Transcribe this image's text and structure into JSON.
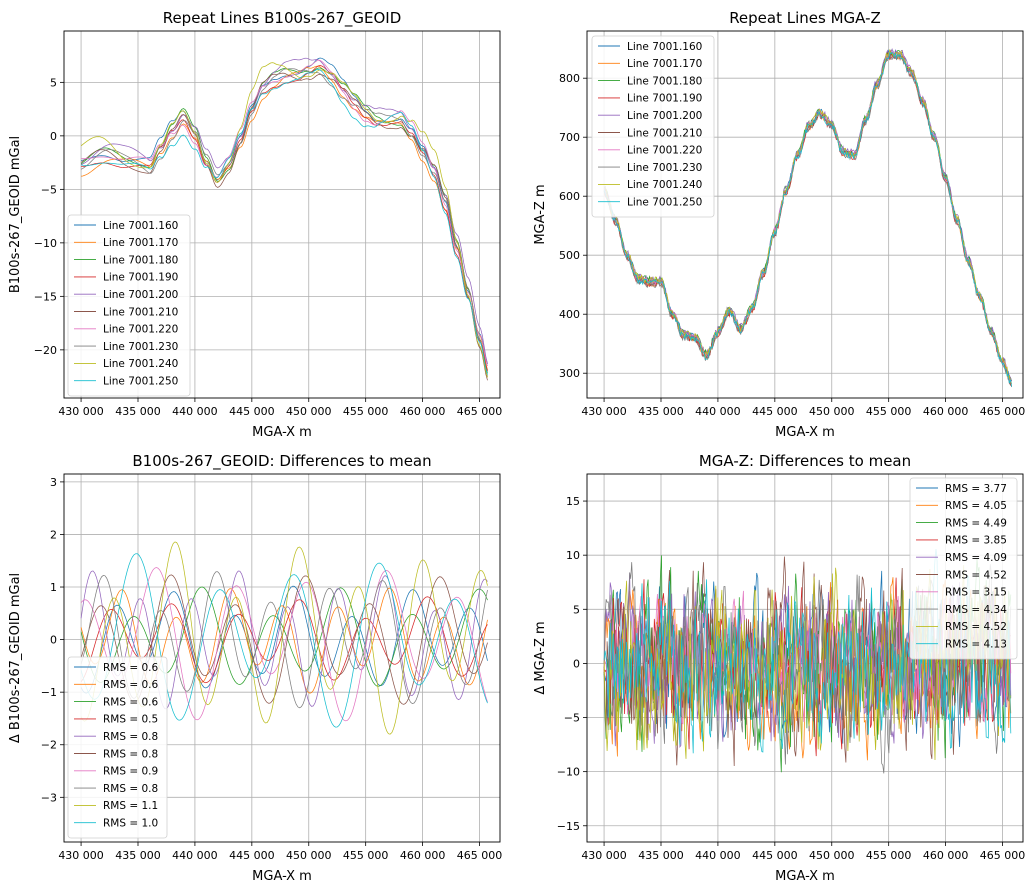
{
  "figure": {
    "background": "#ffffff",
    "grid_color": "#b0b0b0"
  },
  "colors": [
    "#1f77b4",
    "#ff7f0e",
    "#2ca02c",
    "#d62728",
    "#9467bd",
    "#8c564b",
    "#e377c2",
    "#7f7f7f",
    "#bcbd22",
    "#17becf"
  ],
  "chart_data": [
    {
      "type": "line",
      "title": "Repeat Lines B100s-267_GEOID",
      "xlabel": "MGA-X m",
      "ylabel": "B100s-267_GEOID mGal",
      "xlim": [
        428500,
        466800
      ],
      "ylim": [
        -24.5,
        9.8
      ],
      "xticks": [
        430000,
        435000,
        440000,
        445000,
        450000,
        455000,
        460000,
        465000
      ],
      "xtick_labels": [
        "430 000",
        "435 000",
        "440 000",
        "445 000",
        "450 000",
        "455 000",
        "460 000",
        "465 000"
      ],
      "yticks": [
        -20,
        -15,
        -10,
        -5,
        0,
        5
      ],
      "ytick_labels": [
        "−20",
        "−15",
        "−10",
        "−5",
        "0",
        "5"
      ],
      "grid": true,
      "legend_position": "lower-left",
      "x_start": 430000,
      "x_end": 465800,
      "base_profile": {
        "x": [
          430000,
          432000,
          434000,
          436000,
          437000,
          438000,
          439000,
          440000,
          441000,
          442000,
          443000,
          444000,
          445000,
          446000,
          447000,
          448000,
          449000,
          450000,
          451000,
          452000,
          453000,
          454000,
          455000,
          456000,
          457000,
          458000,
          459000,
          460000,
          461000,
          462000,
          463000,
          464000,
          465000,
          465800
        ],
        "y": [
          -3,
          -2.5,
          -3,
          -3,
          -1,
          1,
          2.5,
          1,
          -1.5,
          -3.5,
          -2.5,
          -0.5,
          2,
          3.8,
          4.5,
          5,
          5.2,
          5.8,
          6.5,
          6,
          5,
          4,
          3,
          2.2,
          1.8,
          1.5,
          0,
          -2,
          -4,
          -7,
          -11,
          -15,
          -19,
          -22
        ]
      },
      "series": [
        {
          "name": "Line 7001.160",
          "offset": 0.3,
          "wobble": 0.9
        },
        {
          "name": "Line 7001.170",
          "offset": -0.4,
          "wobble": 1.0
        },
        {
          "name": "Line 7001.180",
          "offset": 0.2,
          "wobble": 1.0
        },
        {
          "name": "Line 7001.190",
          "offset": -0.3,
          "wobble": 0.8
        },
        {
          "name": "Line 7001.200",
          "offset": 0.6,
          "wobble": 1.2
        },
        {
          "name": "Line 7001.210",
          "offset": -0.2,
          "wobble": 1.2
        },
        {
          "name": "Line 7001.220",
          "offset": 0.1,
          "wobble": 1.4
        },
        {
          "name": "Line 7001.230",
          "offset": -0.1,
          "wobble": 1.2
        },
        {
          "name": "Line 7001.240",
          "offset": 0.5,
          "wobble": 1.7
        },
        {
          "name": "Line 7001.250",
          "offset": -0.5,
          "wobble": 1.5
        }
      ]
    },
    {
      "type": "line",
      "title": "Repeat Lines MGA-Z",
      "xlabel": "MGA-X m",
      "ylabel": "MGA-Z m",
      "xlim": [
        428500,
        466800
      ],
      "ylim": [
        258,
        880
      ],
      "xticks": [
        430000,
        435000,
        440000,
        445000,
        450000,
        455000,
        460000,
        465000
      ],
      "xtick_labels": [
        "430 000",
        "435 000",
        "440 000",
        "445 000",
        "450 000",
        "455 000",
        "460 000",
        "465 000"
      ],
      "yticks": [
        300,
        400,
        500,
        600,
        700,
        800
      ],
      "ytick_labels": [
        "300",
        "400",
        "500",
        "600",
        "700",
        "800"
      ],
      "grid": true,
      "legend_position": "upper-left",
      "x_start": 430000,
      "x_end": 465800,
      "base_profile": {
        "x": [
          430000,
          431000,
          432000,
          433000,
          434000,
          435000,
          436000,
          437000,
          438000,
          439000,
          440000,
          441000,
          442000,
          443000,
          444000,
          445000,
          446000,
          447000,
          448000,
          449000,
          450000,
          451000,
          452000,
          453000,
          454000,
          455000,
          456000,
          457000,
          458000,
          459000,
          460000,
          461000,
          462000,
          463000,
          464000,
          465000,
          465800
        ],
        "y": [
          610,
          560,
          500,
          460,
          455,
          455,
          400,
          365,
          360,
          330,
          370,
          405,
          375,
          410,
          470,
          540,
          610,
          670,
          720,
          740,
          720,
          675,
          670,
          730,
          790,
          840,
          840,
          810,
          760,
          700,
          630,
          560,
          490,
          430,
          370,
          320,
          285
        ]
      },
      "series": [
        {
          "name": "Line 7001.160",
          "offset": 2
        },
        {
          "name": "Line 7001.170",
          "offset": -2
        },
        {
          "name": "Line 7001.180",
          "offset": 3
        },
        {
          "name": "Line 7001.190",
          "offset": -3
        },
        {
          "name": "Line 7001.200",
          "offset": 4
        },
        {
          "name": "Line 7001.210",
          "offset": -1
        },
        {
          "name": "Line 7001.220",
          "offset": 1
        },
        {
          "name": "Line 7001.230",
          "offset": -4
        },
        {
          "name": "Line 7001.240",
          "offset": 2
        },
        {
          "name": "Line 7001.250",
          "offset": -2
        }
      ]
    },
    {
      "type": "line",
      "title": "B100s-267_GEOID: Differences to mean",
      "xlabel": "MGA-X m",
      "ylabel": "Δ B100s-267_GEOID mGal",
      "xlim": [
        428500,
        466800
      ],
      "ylim": [
        -3.85,
        3.15
      ],
      "xticks": [
        430000,
        435000,
        440000,
        445000,
        450000,
        455000,
        460000,
        465000
      ],
      "xtick_labels": [
        "430 000",
        "435 000",
        "440 000",
        "445 000",
        "450 000",
        "455 000",
        "460 000",
        "465 000"
      ],
      "yticks": [
        -3,
        -2,
        -1,
        0,
        1,
        2,
        3
      ],
      "ytick_labels": [
        "−3",
        "−2",
        "−1",
        "0",
        "1",
        "2",
        "3"
      ],
      "grid": true,
      "legend_position": "lower-left",
      "x_start": 430000,
      "x_end": 465800,
      "series": [
        {
          "name": "RMS = 0.6",
          "amplitude": 0.85,
          "period": 5200
        },
        {
          "name": "RMS = 0.6",
          "amplitude": 0.85,
          "period": 4700
        },
        {
          "name": "RMS = 0.6",
          "amplitude": 0.85,
          "period": 6100
        },
        {
          "name": "RMS = 0.5",
          "amplitude": 0.7,
          "period": 5600
        },
        {
          "name": "RMS = 0.8",
          "amplitude": 1.1,
          "period": 4300
        },
        {
          "name": "RMS = 0.8",
          "amplitude": 1.1,
          "period": 5900
        },
        {
          "name": "RMS = 0.9",
          "amplitude": 1.3,
          "period": 6600
        },
        {
          "name": "RMS = 0.8",
          "amplitude": 1.1,
          "period": 4900
        },
        {
          "name": "RMS = 1.1",
          "amplitude": 1.55,
          "period": 5400
        },
        {
          "name": "RMS = 1.0",
          "amplitude": 1.4,
          "period": 7000
        }
      ]
    },
    {
      "type": "line",
      "title": "MGA-Z: Differences to mean",
      "xlabel": "MGA-X m",
      "ylabel": "Δ MGA-Z m",
      "xlim": [
        428500,
        466800
      ],
      "ylim": [
        -16.5,
        17.5
      ],
      "xticks": [
        430000,
        435000,
        440000,
        445000,
        450000,
        455000,
        460000,
        465000
      ],
      "xtick_labels": [
        "430 000",
        "435 000",
        "440 000",
        "445 000",
        "450 000",
        "455 000",
        "460 000",
        "465 000"
      ],
      "yticks": [
        -15,
        -10,
        -5,
        0,
        5,
        10,
        15
      ],
      "ytick_labels": [
        "−15",
        "−10",
        "−5",
        "0",
        "5",
        "10",
        "15"
      ],
      "grid": true,
      "legend_position": "upper-right",
      "x_start": 430000,
      "x_end": 465800,
      "series": [
        {
          "name": "RMS = 3.77",
          "rms": 3.77
        },
        {
          "name": "RMS = 4.05",
          "rms": 4.05
        },
        {
          "name": "RMS = 4.49",
          "rms": 4.49
        },
        {
          "name": "RMS = 3.85",
          "rms": 3.85
        },
        {
          "name": "RMS = 4.09",
          "rms": 4.09
        },
        {
          "name": "RMS = 4.52",
          "rms": 4.52
        },
        {
          "name": "RMS = 3.15",
          "rms": 3.15
        },
        {
          "name": "RMS = 4.34",
          "rms": 4.34
        },
        {
          "name": "RMS = 4.52",
          "rms": 4.52
        },
        {
          "name": "RMS = 4.13",
          "rms": 4.13
        }
      ]
    }
  ]
}
